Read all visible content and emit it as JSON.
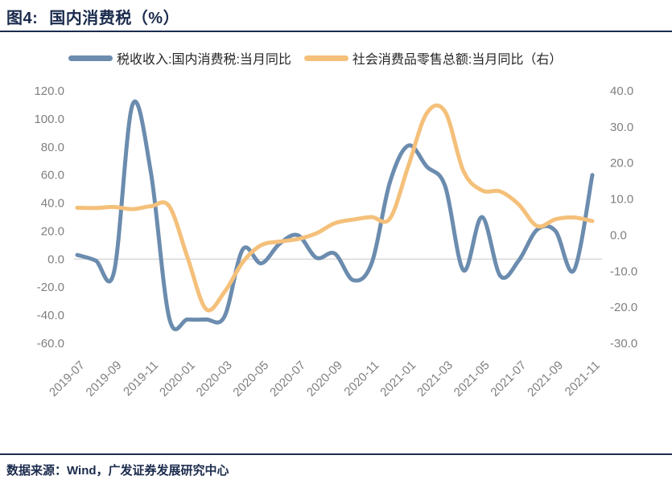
{
  "header": {
    "figure_label": "图4:",
    "title": "国内消费税（%）"
  },
  "legend": [
    {
      "label": "税收收入:国内消费税:当月同比",
      "color": "#6b8cae"
    },
    {
      "label": "社会消费品零售总额:当月同比（右）",
      "color": "#f4c07a"
    }
  ],
  "footer": {
    "source": "数据来源：Wind，广发证券发展研究中心"
  },
  "chart_data": {
    "type": "line",
    "title": "国内消费税（%）",
    "x": [
      "2019-07",
      "2019-08",
      "2019-09",
      "2019-10",
      "2019-11",
      "2019-12",
      "2020-01",
      "2020-02",
      "2020-03",
      "2020-04",
      "2020-05",
      "2020-06",
      "2020-07",
      "2020-08",
      "2020-09",
      "2020-10",
      "2020-11",
      "2020-12",
      "2021-01",
      "2021-02",
      "2021-03",
      "2021-04",
      "2021-05",
      "2021-06",
      "2021-07",
      "2021-08",
      "2021-09",
      "2021-10",
      "2021-11"
    ],
    "x_tick_labels": [
      "2019-07",
      "2019-09",
      "2019-11",
      "2020-01",
      "2020-03",
      "2020-05",
      "2020-07",
      "2020-09",
      "2020-11",
      "2021-01",
      "2021-03",
      "2021-05",
      "2021-07",
      "2021-09",
      "2021-11"
    ],
    "series": [
      {
        "name": "税收收入:国内消费税:当月同比",
        "axis": "left",
        "color": "#6b8cae",
        "values": [
          3,
          -1,
          -9,
          110,
          62,
          -42,
          -43,
          -43,
          -41,
          7,
          -3,
          11,
          17,
          1,
          4,
          -15,
          -3,
          55,
          81,
          66,
          52,
          -8,
          30,
          -12,
          -1,
          21,
          20,
          -8,
          60
        ]
      },
      {
        "name": "社会消费品零售总额:当月同比（右）",
        "axis": "right",
        "color": "#f4c07a",
        "values": [
          7.6,
          7.5,
          7.8,
          7.2,
          8.0,
          8.0,
          -6.3,
          -20.5,
          -15.8,
          -7.5,
          -2.8,
          -1.8,
          -1.1,
          0.5,
          3.3,
          4.3,
          5.0,
          4.6,
          19.2,
          33.8,
          34.2,
          17.7,
          12.4,
          12.1,
          8.5,
          2.5,
          4.4,
          4.9,
          3.9
        ]
      }
    ],
    "left_axis": {
      "min": -60,
      "max": 120,
      "tick_labels": [
        "120.0",
        "100.0",
        "80.0",
        "60.0",
        "40.0",
        "20.0",
        "0.0",
        "-20.0",
        "-40.0",
        "-60.0"
      ]
    },
    "right_axis": {
      "min": -30,
      "max": 40,
      "tick_labels": [
        "40.0",
        "30.0",
        "20.0",
        "10.0",
        "0.0",
        "-10.0",
        "-20.0",
        "-30.0"
      ]
    },
    "grid": "horizontal-zero-line-only",
    "legend_position": "top",
    "tick_label_color": "#7f7f7f",
    "zero_line_color": "#d6d6d6"
  }
}
